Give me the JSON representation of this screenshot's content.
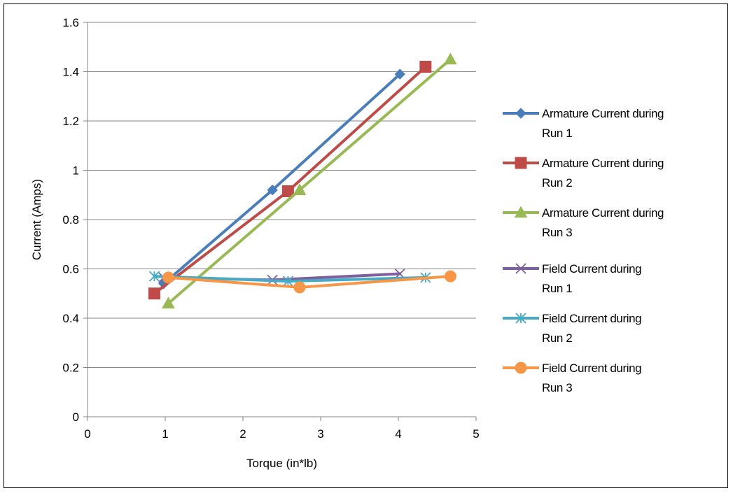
{
  "chart_data": {
    "type": "line",
    "title": "",
    "xlabel": "Torque (in*lb)",
    "ylabel": "Current (Amps)",
    "xlim": [
      0,
      5
    ],
    "ylim": [
      0,
      1.6
    ],
    "xticks": [
      "0",
      "1",
      "2",
      "3",
      "4",
      "5"
    ],
    "yticks": [
      "0",
      "0.2",
      "0.4",
      "0.6",
      "0.8",
      "1",
      "1.2",
      "1.4",
      "1.6"
    ],
    "grid": "horizontal",
    "legend_position": "right",
    "series": [
      {
        "name": "Armature Current during Run 1",
        "color": "#4a7ebb",
        "marker": "diamond",
        "points": [
          [
            0.98,
            0.54
          ],
          [
            2.38,
            0.92
          ],
          [
            4.02,
            1.39
          ]
        ]
      },
      {
        "name": "Armature Current during Run 2",
        "color": "#be4b48",
        "marker": "square",
        "points": [
          [
            0.86,
            0.5
          ],
          [
            2.58,
            0.915
          ],
          [
            4.35,
            1.42
          ]
        ]
      },
      {
        "name": "Armature Current during Run 3",
        "color": "#98b954",
        "marker": "triangle",
        "points": [
          [
            1.04,
            0.46
          ],
          [
            2.73,
            0.92
          ],
          [
            4.67,
            1.45
          ]
        ]
      },
      {
        "name": "Field Current during Run 1",
        "color": "#7d60a0",
        "marker": "x",
        "points": [
          [
            0.98,
            0.565
          ],
          [
            2.38,
            0.555
          ],
          [
            4.02,
            0.58
          ]
        ]
      },
      {
        "name": "Field Current during Run 2",
        "color": "#46aac5",
        "marker": "star",
        "points": [
          [
            0.86,
            0.57
          ],
          [
            2.58,
            0.55
          ],
          [
            4.35,
            0.565
          ]
        ]
      },
      {
        "name": "Field Current during Run 3",
        "color": "#f79646",
        "marker": "circle",
        "points": [
          [
            1.04,
            0.565
          ],
          [
            2.73,
            0.525
          ],
          [
            4.67,
            0.57
          ]
        ]
      }
    ]
  }
}
